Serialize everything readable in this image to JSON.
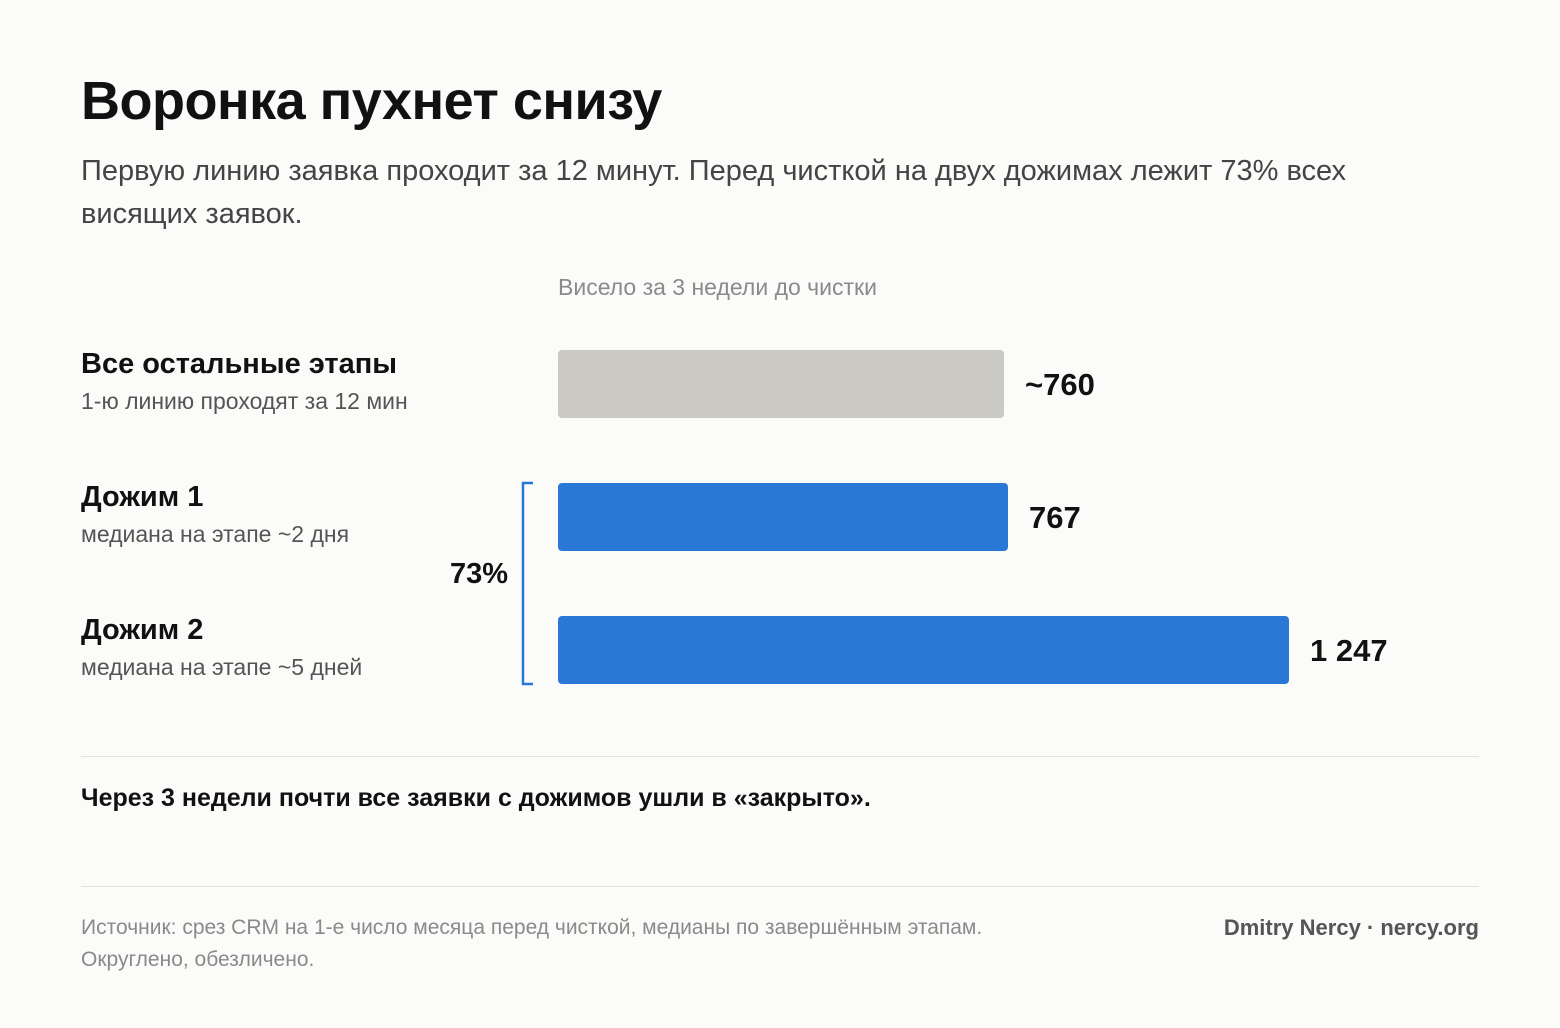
{
  "header": {
    "title": "Воронка пухнет снизу",
    "subtitle": "Первую линию заявка проходит за 12 минут. Перед чисткой на двух дожимах лежит 73% всех висящих заявок."
  },
  "chart_data": {
    "type": "bar",
    "orientation": "horizontal",
    "value_caption": "Висело за 3 недели до чистки",
    "categories": [
      "Все остальные этапы",
      "Дожим 1",
      "Дожим 2"
    ],
    "notes": [
      "1-ю линию проходят за 12 мин",
      "медиана на этапе ~2 дня",
      "медиана на этапе ~5 дней"
    ],
    "values": [
      760,
      767,
      1247
    ],
    "value_labels": [
      "~760",
      "767",
      "1 247"
    ],
    "colors": [
      "#cbc9c4",
      "#2a78d6",
      "#2a78d6"
    ],
    "bracket": {
      "label": "73%",
      "covers": [
        "Дожим 1",
        "Дожим 2"
      ],
      "color": "#2a78d6"
    },
    "xlim": [
      0,
      1247
    ],
    "grid": false,
    "legend": "none"
  },
  "conclusion": "Через 3 недели почти все заявки с дожимов ушли в «закрыто».",
  "footer": {
    "source_line1": "Источник: срез CRM на 1-е число месяца перед чисткой, медианы по завершённым этапам.",
    "source_line2": "Округлено, обезличено.",
    "credit": "Dmitry Nercy · nercy.org"
  }
}
